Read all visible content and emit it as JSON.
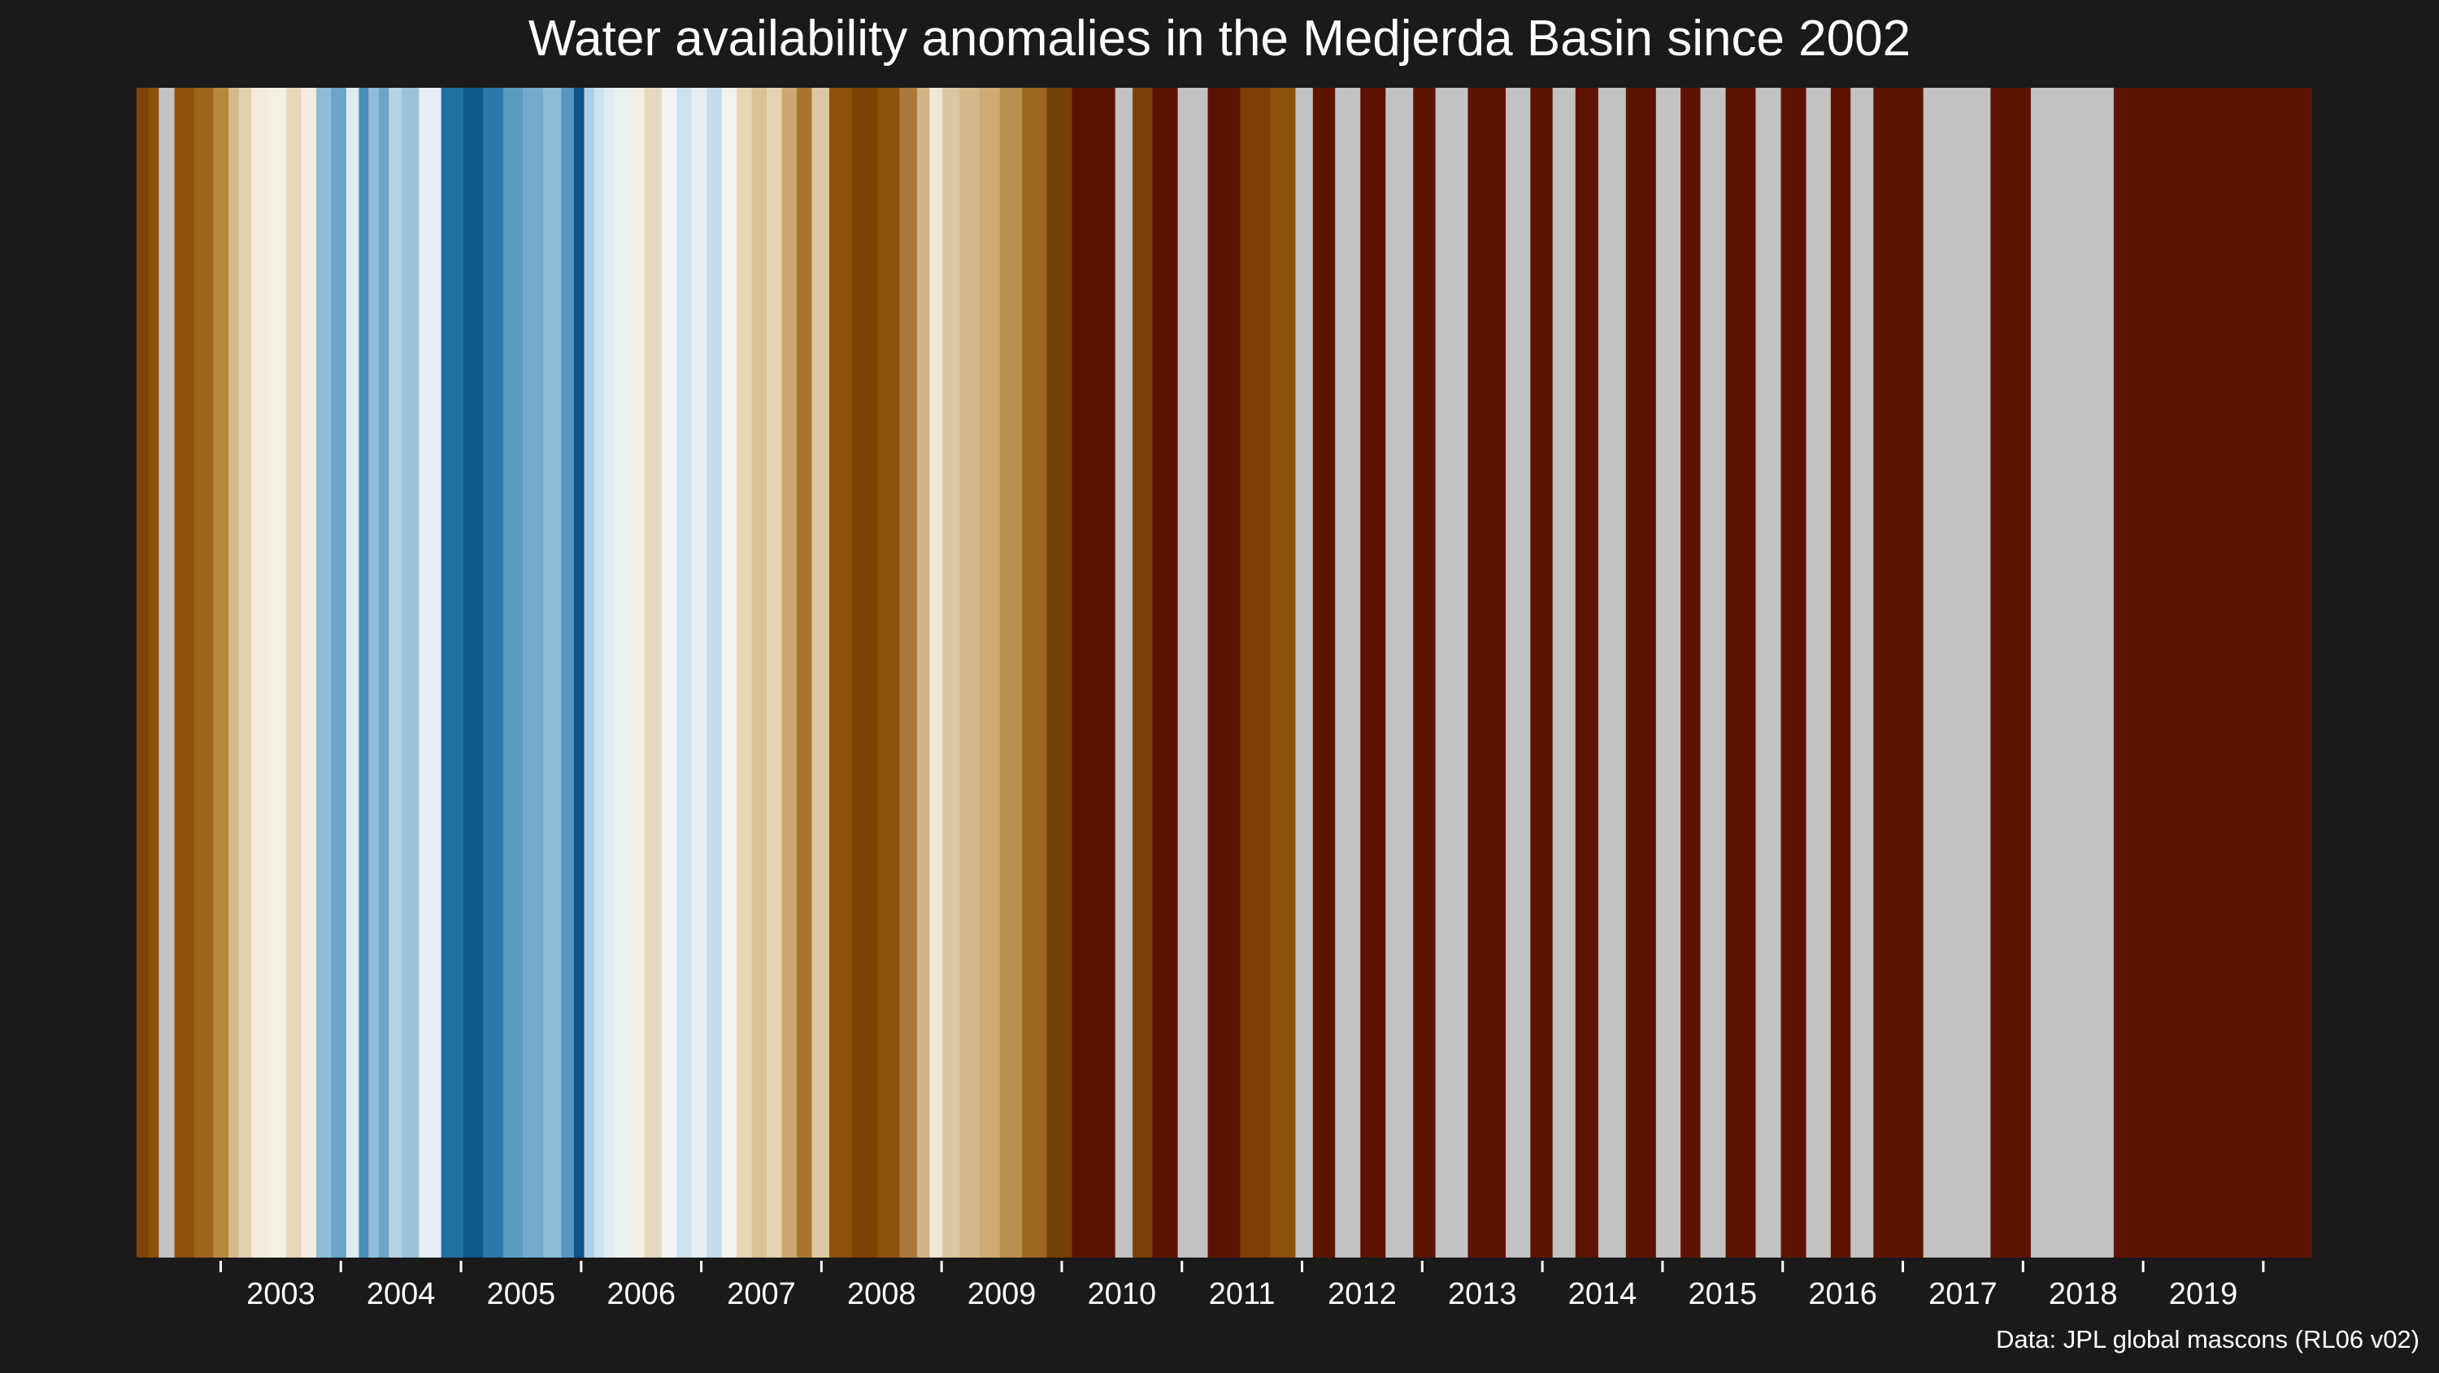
{
  "chart_data": {
    "type": "heatmap",
    "title": "Water availability anomalies in the Medjerda Basin since 2002",
    "source": "Data: JPL global mascons (RL06 v02)",
    "xlabel": "",
    "ylabel": "",
    "x_ticks": [
      "2003",
      "2004",
      "2005",
      "2006",
      "2007",
      "2008",
      "2009",
      "2010",
      "2011",
      "2012",
      "2013",
      "2014",
      "2015",
      "2016",
      "2017",
      "2018",
      "2019"
    ],
    "x_range": [
      2002.3,
      2020.4
    ],
    "missing_color": "#c2c2c2",
    "grid": false,
    "legend": "none",
    "color_scale": "brown (dry) - white - blue (wet) diverging",
    "stripes": [
      {
        "t": 2002.36,
        "color": "#7e4405"
      },
      {
        "t": 2002.44,
        "color": "#8c510a"
      },
      {
        "t": 2002.53,
        "color": "#c2c2c2"
      },
      {
        "t": 2002.7,
        "color": "#8c510a"
      },
      {
        "t": 2002.86,
        "color": "#9c6618"
      },
      {
        "t": 2003.02,
        "color": "#b7893f"
      },
      {
        "t": 2003.11,
        "color": "#d4b989"
      },
      {
        "t": 2003.19,
        "color": "#e2d0ae"
      },
      {
        "t": 2003.32,
        "color": "#f3ecde"
      },
      {
        "t": 2003.48,
        "color": "#f5f0e6"
      },
      {
        "t": 2003.61,
        "color": "#e8d7b8"
      },
      {
        "t": 2003.73,
        "color": "#f3ece0"
      },
      {
        "t": 2003.86,
        "color": "#8fbbd4"
      },
      {
        "t": 2003.98,
        "color": "#6ba5c8"
      },
      {
        "t": 2004.11,
        "color": "#ddeaf2"
      },
      {
        "t": 2004.19,
        "color": "#4a8db9"
      },
      {
        "t": 2004.27,
        "color": "#8fbcd6"
      },
      {
        "t": 2004.36,
        "color": "#6aa4c8"
      },
      {
        "t": 2004.44,
        "color": "#b7d3e4"
      },
      {
        "t": 2004.57,
        "color": "#9bc2da"
      },
      {
        "t": 2004.73,
        "color": "#e4eef4"
      },
      {
        "t": 2004.94,
        "color": "#1f6fa1"
      },
      {
        "t": 2005.1,
        "color": "#0d5a8f"
      },
      {
        "t": 2005.27,
        "color": "#2c78aa"
      },
      {
        "t": 2005.43,
        "color": "#5b9bc2"
      },
      {
        "t": 2005.6,
        "color": "#73aacb"
      },
      {
        "t": 2005.77,
        "color": "#8dbbd6"
      },
      {
        "t": 2005.9,
        "color": "#5797c0"
      },
      {
        "t": 2005.98,
        "color": "#0c5589"
      },
      {
        "t": 2006.07,
        "color": "#aecfe3"
      },
      {
        "t": 2006.15,
        "color": "#cfe2ee"
      },
      {
        "t": 2006.23,
        "color": "#e0ebf2"
      },
      {
        "t": 2006.32,
        "color": "#eaf1f5"
      },
      {
        "t": 2006.44,
        "color": "#f3efe6"
      },
      {
        "t": 2006.61,
        "color": "#e6d9bd"
      },
      {
        "t": 2006.73,
        "color": "#f2f3f3"
      },
      {
        "t": 2006.86,
        "color": "#cee2ed"
      },
      {
        "t": 2006.98,
        "color": "#e4eef3"
      },
      {
        "t": 2007.11,
        "color": "#c4dcea"
      },
      {
        "t": 2007.23,
        "color": "#f4f2ec"
      },
      {
        "t": 2007.36,
        "color": "#e7d6b4"
      },
      {
        "t": 2007.48,
        "color": "#d9c196"
      },
      {
        "t": 2007.61,
        "color": "#e6d4b1"
      },
      {
        "t": 2007.73,
        "color": "#c9a76e"
      },
      {
        "t": 2007.86,
        "color": "#a87531"
      },
      {
        "t": 2007.98,
        "color": "#dcc8a1"
      },
      {
        "t": 2008.15,
        "color": "#8c510a"
      },
      {
        "t": 2008.36,
        "color": "#7c4304"
      },
      {
        "t": 2008.57,
        "color": "#8c530d"
      },
      {
        "t": 2008.73,
        "color": "#a8793a"
      },
      {
        "t": 2008.86,
        "color": "#d0b586"
      },
      {
        "t": 2008.94,
        "color": "#efe6d4"
      },
      {
        "t": 2009.07,
        "color": "#dcc7a0"
      },
      {
        "t": 2009.23,
        "color": "#d4b98b"
      },
      {
        "t": 2009.4,
        "color": "#ccaa72"
      },
      {
        "t": 2009.57,
        "color": "#b8904f"
      },
      {
        "t": 2009.77,
        "color": "#9b6821"
      },
      {
        "t": 2009.98,
        "color": "#744009"
      },
      {
        "t": 2010.19,
        "color": "#5e1300"
      },
      {
        "t": 2010.36,
        "color": "#5e1300"
      },
      {
        "t": 2010.53,
        "color": "#c2c2c2"
      },
      {
        "t": 2010.65,
        "color": "#7a3f06"
      },
      {
        "t": 2010.86,
        "color": "#5e1300"
      },
      {
        "t": 2011.07,
        "color": "#c2c2c2"
      },
      {
        "t": 2011.36,
        "color": "#5e1300"
      },
      {
        "t": 2011.61,
        "color": "#7d4204"
      },
      {
        "t": 2011.86,
        "color": "#8c510a"
      },
      {
        "t": 2012.03,
        "color": "#c2c2c2"
      },
      {
        "t": 2012.15,
        "color": "#5e1300"
      },
      {
        "t": 2012.4,
        "color": "#c2c2c2"
      },
      {
        "t": 2012.57,
        "color": "#5e1300"
      },
      {
        "t": 2012.82,
        "color": "#c2c2c2"
      },
      {
        "t": 2013.03,
        "color": "#5e1300"
      },
      {
        "t": 2013.19,
        "color": "#c2c2c2"
      },
      {
        "t": 2013.57,
        "color": "#5e1300"
      },
      {
        "t": 2013.82,
        "color": "#c2c2c2"
      },
      {
        "t": 2013.98,
        "color": "#5e1300"
      },
      {
        "t": 2014.19,
        "color": "#c2c2c2"
      },
      {
        "t": 2014.36,
        "color": "#5e1300"
      },
      {
        "t": 2014.57,
        "color": "#c2c2c2"
      },
      {
        "t": 2014.82,
        "color": "#5e1300"
      },
      {
        "t": 2015.07,
        "color": "#c2c2c2"
      },
      {
        "t": 2015.23,
        "color": "#5e1300"
      },
      {
        "t": 2015.4,
        "color": "#c2c2c2"
      },
      {
        "t": 2015.65,
        "color": "#5e1300"
      },
      {
        "t": 2015.9,
        "color": "#c2c2c2"
      },
      {
        "t": 2016.07,
        "color": "#5e1300"
      },
      {
        "t": 2016.32,
        "color": "#c2c2c2"
      },
      {
        "t": 2016.48,
        "color": "#5e1300"
      },
      {
        "t": 2016.65,
        "color": "#c2c2c2"
      },
      {
        "t": 2016.86,
        "color": "#5e1300"
      },
      {
        "t": 2017.48,
        "color": "#c2c2c2"
      },
      {
        "t": 2017.98,
        "color": "#5e1300"
      },
      {
        "t": 2018.15,
        "color": "#c2c2c2"
      },
      {
        "t": 2019.36,
        "color": "#5e1300"
      }
    ]
  }
}
